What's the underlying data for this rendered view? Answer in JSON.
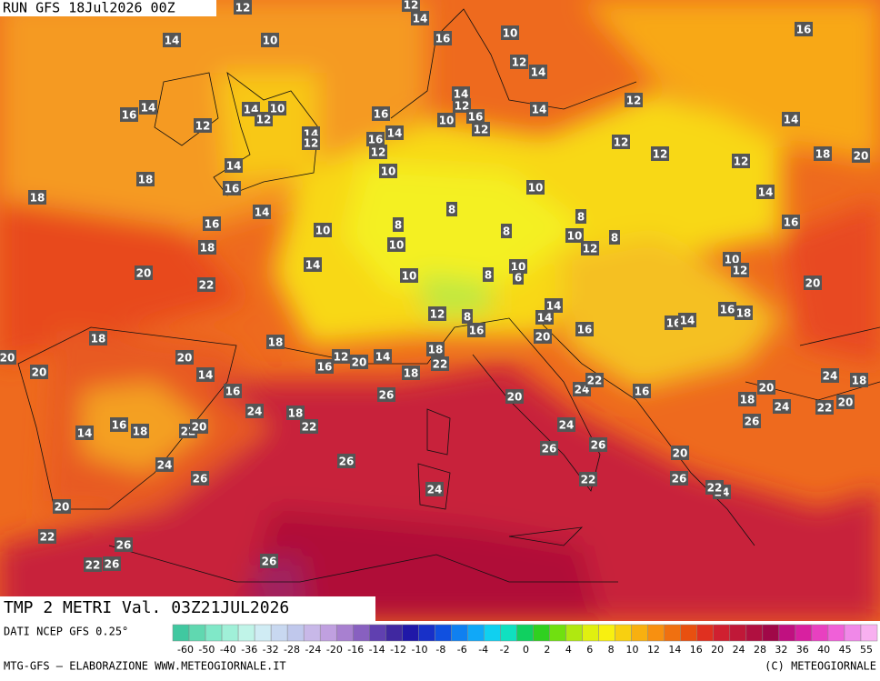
{
  "header": {
    "run": "RUN GFS 18Jul2026 00Z"
  },
  "title": "TMP 2 METRI Val. 03Z21JUL2026",
  "source": "DATI NCEP GFS 0.25°",
  "credit_left": "MTG-GFS — ELABORAZIONE WWW.METEOGIORNALE.IT",
  "credit_right": "(C) METEOGIORNALE",
  "colorbar": {
    "labels": [
      -60,
      -50,
      -40,
      -36,
      -32,
      -28,
      -24,
      -20,
      -16,
      -14,
      -12,
      -10,
      -8,
      -6,
      -4,
      -2,
      0,
      2,
      4,
      6,
      8,
      10,
      12,
      14,
      16,
      20,
      24,
      28,
      32,
      36,
      40,
      45,
      55
    ],
    "colors": [
      "#40c8a0",
      "#60d8b0",
      "#80e8c8",
      "#a0f0d8",
      "#c0f4e8",
      "#d0ecf4",
      "#c8d8f0",
      "#c0c8ec",
      "#c8b8e8",
      "#c0a0e0",
      "#a880d0",
      "#8860c0",
      "#6040b0",
      "#4028a0",
      "#2018a8",
      "#1830c8",
      "#1050e0",
      "#1080f0",
      "#10a8f8",
      "#10d0f0",
      "#10e0c0",
      "#10d060",
      "#30d020",
      "#70e010",
      "#b0e810",
      "#e0f010",
      "#f8f010",
      "#f8d010",
      "#f8b010",
      "#f89010",
      "#f07010",
      "#e85010",
      "#e03020",
      "#d02030",
      "#c01838",
      "#b01040",
      "#a00848",
      "#c01080",
      "#d820a0",
      "#e840c0",
      "#f060d8",
      "#f088e8",
      "#f8b0f0"
    ]
  },
  "map_labels": [
    12,
    12,
    14,
    14,
    10,
    16,
    10,
    16,
    12,
    14,
    14,
    16,
    14,
    12,
    10,
    16,
    14,
    12,
    16,
    10,
    12,
    14,
    12,
    14,
    12,
    14,
    12,
    16,
    14,
    12,
    12,
    12,
    18,
    20,
    14,
    18,
    10,
    12,
    16,
    18,
    10,
    14,
    14,
    16,
    8,
    8,
    8,
    8,
    16,
    10,
    10,
    12,
    8,
    18,
    10,
    14,
    10,
    12,
    20,
    10,
    6,
    8,
    10,
    22,
    20,
    14,
    16,
    18,
    12,
    16,
    14,
    14,
    8,
    16,
    16,
    18,
    18,
    20,
    12,
    20,
    14,
    18,
    22,
    20,
    20,
    20,
    14,
    18,
    16,
    16,
    26,
    24,
    22,
    16,
    24,
    18,
    20,
    18,
    22,
    20,
    24,
    20,
    24,
    18,
    22,
    16,
    18,
    14,
    22,
    20,
    26,
    24,
    26,
    26,
    24,
    26,
    26,
    20,
    26,
    22,
    24,
    24,
    22,
    20,
    22,
    26,
    22,
    26,
    26
  ]
}
